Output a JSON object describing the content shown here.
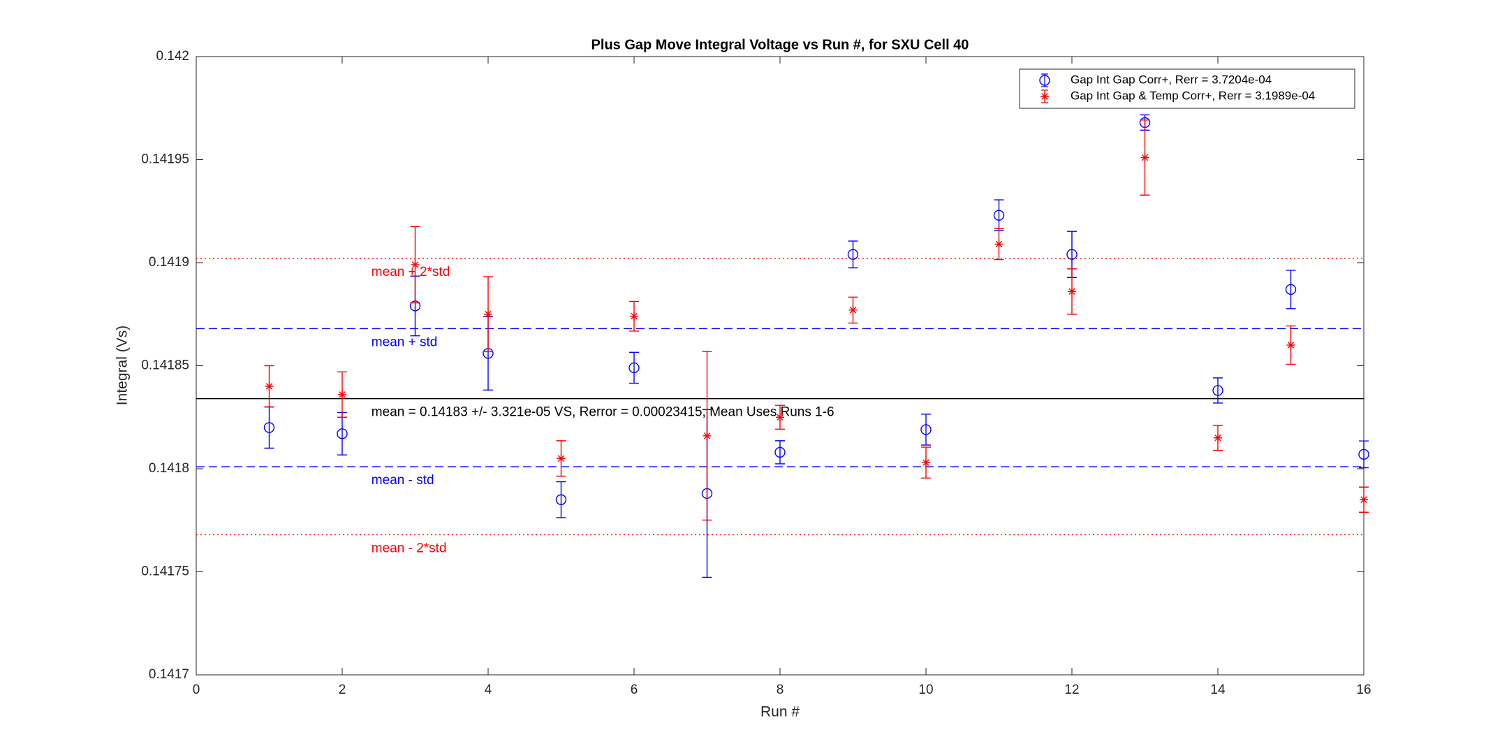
{
  "chart_data": {
    "type": "errorbar",
    "title": "Plus Gap Move Integral Voltage vs Run #, for SXU Cell 40",
    "x_label": "Run #",
    "y_label": "Integral (Vs)",
    "x": [
      1,
      2,
      3,
      4,
      5,
      6,
      7,
      8,
      9,
      10,
      11,
      12,
      13,
      14,
      15,
      16
    ],
    "series": [
      {
        "name": "Gap Int Gap Corr+, Rerr = 3.7204e-04",
        "color": "#0000ff",
        "marker": "circle",
        "values": [
          0.14182,
          0.141817,
          0.141879,
          0.141856,
          0.141785,
          0.141849,
          0.141788,
          0.141808,
          0.141904,
          0.141819,
          0.141923,
          0.141904,
          0.141968,
          0.141838,
          0.141887,
          0.141807
        ],
        "errors": [
          1e-05,
          1.03e-05,
          1.45e-05,
          1.78e-05,
          8.7e-06,
          7.5e-06,
          4.07e-05,
          5.6e-06,
          6.5e-06,
          7.5e-06,
          7.5e-06,
          1.12e-05,
          3.7e-06,
          6.1e-06,
          9.3e-06,
          6.5e-06
        ]
      },
      {
        "name": "Gap Int Gap & Temp  Corr+, Rerr = 3.1989e-04",
        "color": "#ff0000",
        "marker": "star",
        "values": [
          0.14184,
          0.141836,
          0.141899,
          0.141875,
          0.141805,
          0.141874,
          0.141816,
          0.141825,
          0.141877,
          0.141803,
          0.141909,
          0.141886,
          0.141951,
          0.141815,
          0.14186,
          0.141785
        ],
        "errors": [
          1e-05,
          1.1e-05,
          1.85e-05,
          1.82e-05,
          8.6e-06,
          7.2e-06,
          4.09e-05,
          5.8e-06,
          6.3e-06,
          7.5e-06,
          7.5e-06,
          1.1e-05,
          1.82e-05,
          6.1e-06,
          9.3e-06,
          6.1e-06
        ]
      }
    ],
    "reference_lines": [
      {
        "value": 0.141902,
        "label": "mean + 2*std",
        "color": "#ff0000",
        "style": "dotted"
      },
      {
        "value": 0.141868,
        "label": "mean + std",
        "color": "#0000ff",
        "style": "dashed"
      },
      {
        "value": 0.141834,
        "label": "mean = 0.14183 +/- 3.321e-05 VS, Rerror = 0.00023415, Mean Uses Runs 1-6",
        "color": "#000000",
        "style": "solid"
      },
      {
        "value": 0.141801,
        "label": "mean - std",
        "color": "#0000ff",
        "style": "dashed"
      },
      {
        "value": 0.141768,
        "label": "mean - 2*std",
        "color": "#ff0000",
        "style": "dotted"
      }
    ],
    "xlim": [
      0,
      16
    ],
    "xticks": [
      0,
      2,
      4,
      6,
      8,
      10,
      12,
      14,
      16
    ],
    "ylim": [
      0.1417,
      0.142
    ],
    "yticks": [
      0.1417,
      0.14175,
      0.1418,
      0.14185,
      0.1419,
      0.14195,
      0.142
    ],
    "legend": "top-right"
  }
}
